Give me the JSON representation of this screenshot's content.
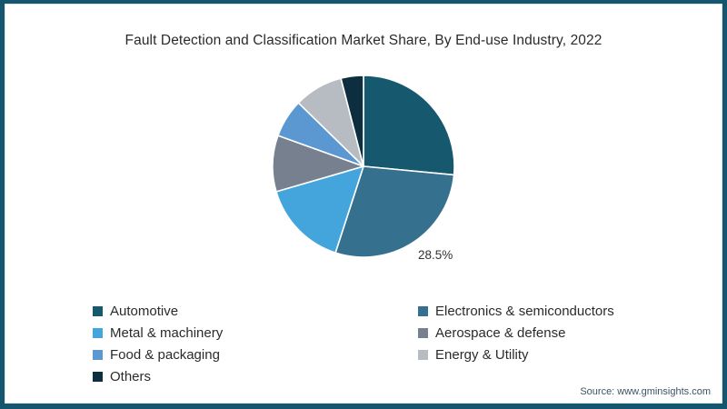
{
  "frame": {
    "border_color": "#15566e",
    "inner_line_color": "#dbe4e9",
    "background": "#ffffff"
  },
  "title": "Fault Detection and Classification Market Share, By End-use Industry, 2022",
  "chart_data": {
    "type": "pie",
    "title": "Fault Detection and Classification Market Share, By End-use Industry, 2022",
    "categories": [
      "Automotive",
      "Electronics & semiconductors",
      "Metal & machinery",
      "Aerospace & defense",
      "Food & packaging",
      "Energy & Utility",
      "Others"
    ],
    "values": [
      26.5,
      28.5,
      15.5,
      10.0,
      6.8,
      8.7,
      4.0
    ],
    "unit": "percent",
    "colors": [
      "#16586E",
      "#35708E",
      "#44A5DD",
      "#77808E",
      "#5B97D0",
      "#B6BCC2",
      "#0D2E3E"
    ],
    "start_angle_deg": 0,
    "direction": "clockwise",
    "slice_border_color": "#ffffff",
    "data_labels": [
      {
        "category": "Electronics & semiconductors",
        "text": "28.5%"
      }
    ],
    "legend_position": "bottom-two-columns"
  },
  "legend": {
    "columns": [
      {
        "items": [
          {
            "label": "Automotive",
            "color": "#16586E"
          },
          {
            "label": "Metal & machinery",
            "color": "#44A5DD"
          },
          {
            "label": "Food & packaging",
            "color": "#5B97D0"
          },
          {
            "label": "Others",
            "color": "#0D2E3E"
          }
        ]
      },
      {
        "items": [
          {
            "label": "Electronics & semiconductors",
            "color": "#35708E"
          },
          {
            "label": "Aerospace & defense",
            "color": "#77808E"
          },
          {
            "label": "Energy & Utility",
            "color": "#B6BCC2"
          }
        ]
      }
    ]
  },
  "source": {
    "text": "Source: www.gminsights.com"
  }
}
